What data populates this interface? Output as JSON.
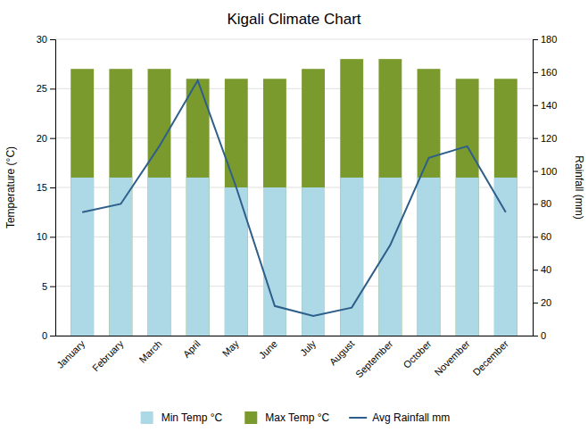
{
  "chart_data": {
    "type": "bar",
    "title": "Kigali Climate Chart",
    "categories": [
      "January",
      "February",
      "March",
      "April",
      "May",
      "June",
      "July",
      "August",
      "September",
      "October",
      "November",
      "December"
    ],
    "series": [
      {
        "name": "Min Temp °C",
        "type": "bar",
        "color": "#add8e6",
        "values": [
          16,
          16,
          16,
          16,
          15,
          15,
          15,
          16,
          16,
          16,
          16,
          16
        ]
      },
      {
        "name": "Max Temp °C",
        "type": "bar",
        "color": "#7a9a2e",
        "values": [
          27,
          27,
          27,
          26,
          26,
          26,
          27,
          28,
          28,
          27,
          26,
          26
        ]
      },
      {
        "name": "Avg Rainfall mm",
        "type": "line",
        "color": "#2e5f8a",
        "axis": "y2",
        "values": [
          75,
          80,
          115,
          155,
          90,
          18,
          12,
          17,
          55,
          108,
          115,
          75
        ]
      }
    ],
    "y_label": "Temperature (°C)",
    "y2_label": "Rainfall (mm)",
    "ylim": [
      0,
      30
    ],
    "yticks": [
      0,
      5,
      10,
      15,
      20,
      25,
      30
    ],
    "y2lim": [
      0,
      180
    ],
    "y2ticks": [
      0,
      20,
      40,
      60,
      80,
      100,
      120,
      140,
      160,
      180
    ],
    "grid": true,
    "legend": "bottom"
  }
}
